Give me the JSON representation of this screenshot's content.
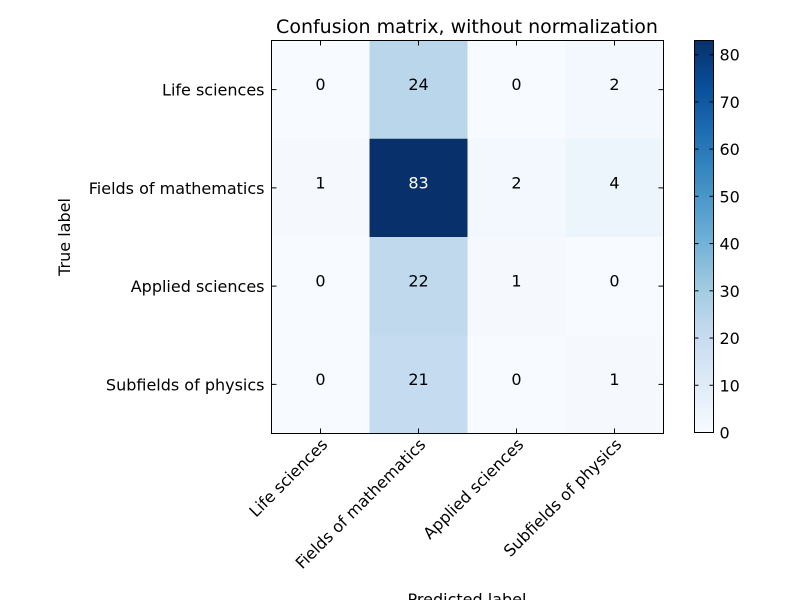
{
  "chart_data": {
    "type": "heatmap",
    "title": "Confusion matrix, without normalization",
    "xlabel": "Predicted label",
    "ylabel": "True label",
    "row_labels": [
      "Life sciences",
      "Fields of mathematics",
      "Applied sciences",
      "Subfields of physics"
    ],
    "col_labels": [
      "Life sciences",
      "Fields of mathematics",
      "Applied sciences",
      "Subfields of physics"
    ],
    "values": [
      [
        0,
        24,
        0,
        2
      ],
      [
        1,
        83,
        2,
        4
      ],
      [
        0,
        22,
        1,
        0
      ],
      [
        0,
        21,
        0,
        1
      ]
    ],
    "colormap": "Blues",
    "colorbar": {
      "min": 0,
      "max": 83,
      "ticks": [
        0,
        10,
        20,
        30,
        40,
        50,
        60,
        70,
        80
      ]
    }
  }
}
